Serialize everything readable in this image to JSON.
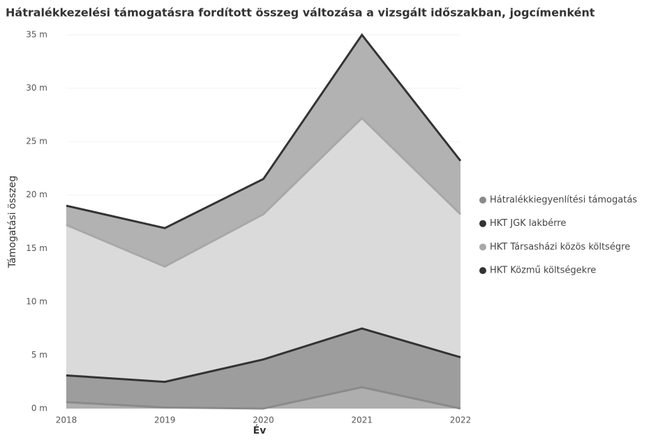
{
  "chart_data": {
    "type": "stacked_area",
    "title": "Hátralékkezelési támogatásra fordított összeg változása a vizsgált időszakban, jogcímenként",
    "x_label": "Év",
    "y_label": "Támogatási összeg",
    "categories": [
      "2018",
      "2019",
      "2020",
      "2021",
      "2022"
    ],
    "series": [
      {
        "name": "Hátralékkiegyenlítési támogatás",
        "color": "#8a8a8a",
        "values": [
          0.6,
          0.1,
          0,
          2.0,
          0
        ]
      },
      {
        "name": "HKT JGK lakbérre",
        "color": "#333333",
        "values": [
          2.5,
          2.4,
          4.6,
          5.5,
          4.8
        ]
      },
      {
        "name": "HKT Társasházi közös költségre",
        "color": "#a8a8a8",
        "values": [
          14.1,
          10.8,
          13.6,
          19.7,
          13.4
        ]
      },
      {
        "name": "HKT Közmű költségekre",
        "color": "#333333",
        "values": [
          1.8,
          3.6,
          3.3,
          7.8,
          5.0
        ]
      }
    ],
    "ylim": [
      0,
      35
    ],
    "yticks": [
      {
        "value": 0,
        "label": "0 m"
      },
      {
        "value": 5,
        "label": "5 m"
      },
      {
        "value": 10,
        "label": "10 m"
      },
      {
        "value": 15,
        "label": "15 m"
      },
      {
        "value": 20,
        "label": "20 m"
      },
      {
        "value": 25,
        "label": "25 m"
      },
      {
        "value": 30,
        "label": "30 m"
      },
      {
        "value": 35,
        "label": "35 m"
      }
    ],
    "legend": "right"
  }
}
